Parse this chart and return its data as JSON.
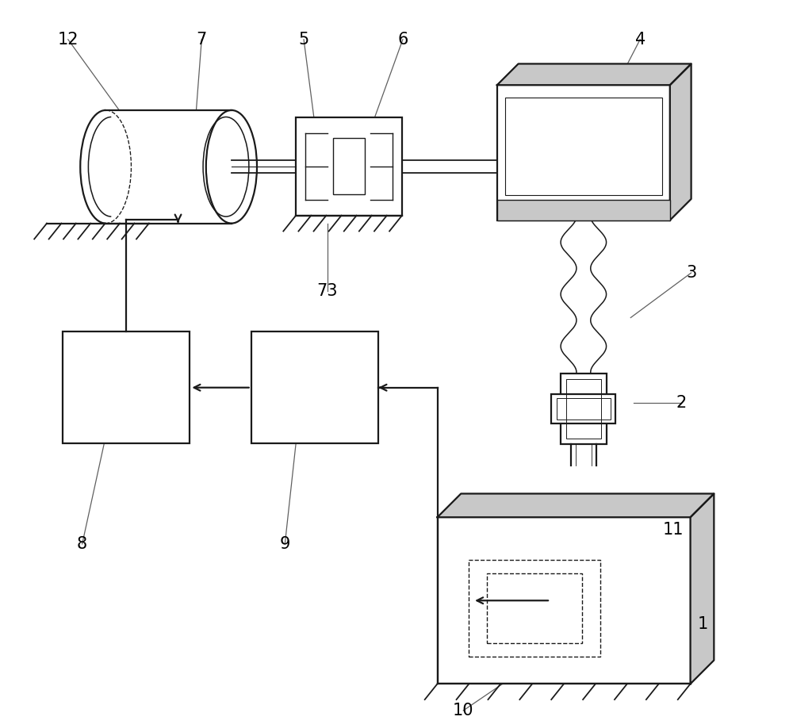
{
  "bg_color": "#ffffff",
  "lc": "#1a1a1a",
  "gc": "#aaaaaa",
  "lgc": "#c8c8c8",
  "fig_width": 10.0,
  "fig_height": 9.18,
  "lw": 1.6,
  "lt": 1.0
}
